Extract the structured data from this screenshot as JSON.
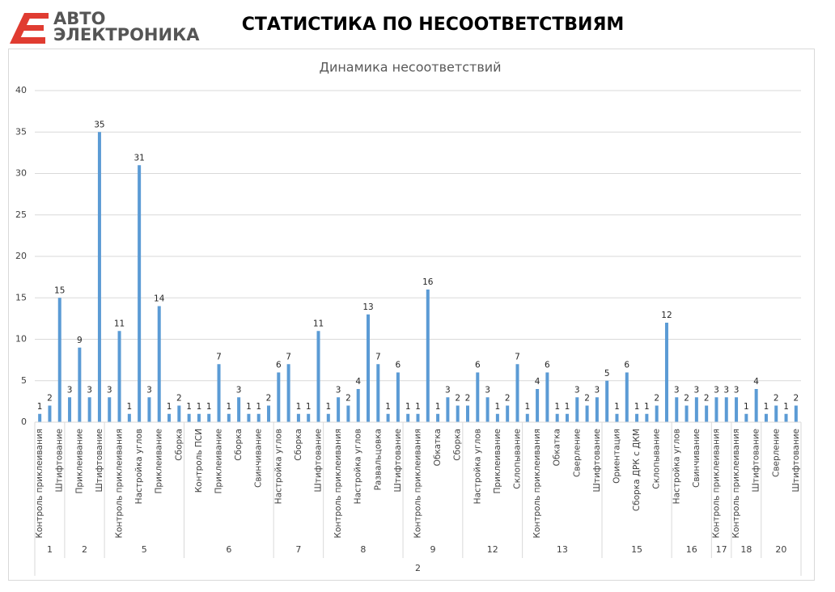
{
  "header": {
    "logo_line1": "АВТО",
    "logo_line2": "ЭЛЕКТРОНИКА",
    "title": "СТАТИСТИКА ПО НЕСООТВЕТСТВИЯМ"
  },
  "chart_data": {
    "type": "bar",
    "title": "Динамика несоответствий",
    "color": "#5b9bd5",
    "grid": true,
    "ylim": [
      0,
      40
    ],
    "yticks": [
      0,
      5,
      10,
      15,
      20,
      25,
      30,
      35,
      40
    ],
    "categories": [
      "Контроль приклеивания",
      null,
      "Штифтование",
      null,
      "Приклеивание",
      null,
      "Штифтование",
      null,
      "Контроль приклеивания",
      null,
      "Настройка углов",
      null,
      "Приклеивание",
      null,
      "Сборка",
      null,
      "Контроль ПСИ",
      null,
      "Приклеивание",
      null,
      "Сборка",
      null,
      "Свинчивание",
      null,
      "Настройка углов",
      null,
      "Сборка",
      null,
      "Штифтование",
      null,
      "Контроль приклеивания",
      null,
      "Настройка углов",
      null,
      "Развальцовка",
      null,
      "Штифтование",
      null,
      "Контроль приклеивания",
      null,
      "Обкатка",
      null,
      "Сборка",
      null,
      "Настройка углов",
      null,
      "Приклеивание",
      null,
      "Склопывание",
      null,
      "Контроль приклеивания",
      null,
      "Обкатка",
      null,
      "Сверление",
      null,
      "Штифтование",
      null,
      "Ориентация",
      null,
      "Сборка ДРК с ДКМ",
      null,
      "Склопывание",
      null,
      "Настройка углов",
      null,
      "Свинчивание",
      null,
      "Контроль приклеивания",
      null,
      "Контроль приклеивания",
      null,
      "Штифтование",
      null,
      "Сверление",
      null,
      "Штифтование"
    ],
    "values": [
      1,
      2,
      15,
      3,
      9,
      3,
      35,
      3,
      11,
      1,
      31,
      3,
      14,
      1,
      2,
      1,
      1,
      1,
      7,
      1,
      3,
      1,
      1,
      2,
      6,
      7,
      1,
      1,
      11,
      1,
      3,
      2,
      4,
      13,
      7,
      1,
      6,
      1,
      1,
      16,
      1,
      3,
      2,
      2,
      6,
      3,
      1,
      2,
      7,
      1,
      4,
      6,
      1,
      1,
      3,
      2,
      3,
      5,
      1,
      6,
      1,
      1,
      2,
      12,
      3,
      2,
      3,
      2,
      3,
      3,
      3,
      1,
      4,
      1,
      2,
      1,
      2
    ],
    "groups": [
      {
        "label": "1",
        "count": 3
      },
      {
        "label": "2",
        "count": 4
      },
      {
        "label": "5",
        "count": 8
      },
      {
        "label": "6",
        "count": 9
      },
      {
        "label": "7",
        "count": 5
      },
      {
        "label": "8",
        "count": 8
      },
      {
        "label": "9",
        "count": 6
      },
      {
        "label": "12",
        "count": 6
      },
      {
        "label": "13",
        "count": 8
      },
      {
        "label": "15",
        "count": 7
      },
      {
        "label": "16",
        "count": 4
      },
      {
        "label": "17",
        "count": 2
      },
      {
        "label": "18",
        "count": 3
      },
      {
        "label": "20",
        "count": 4
      }
    ],
    "outer_group": "2"
  }
}
